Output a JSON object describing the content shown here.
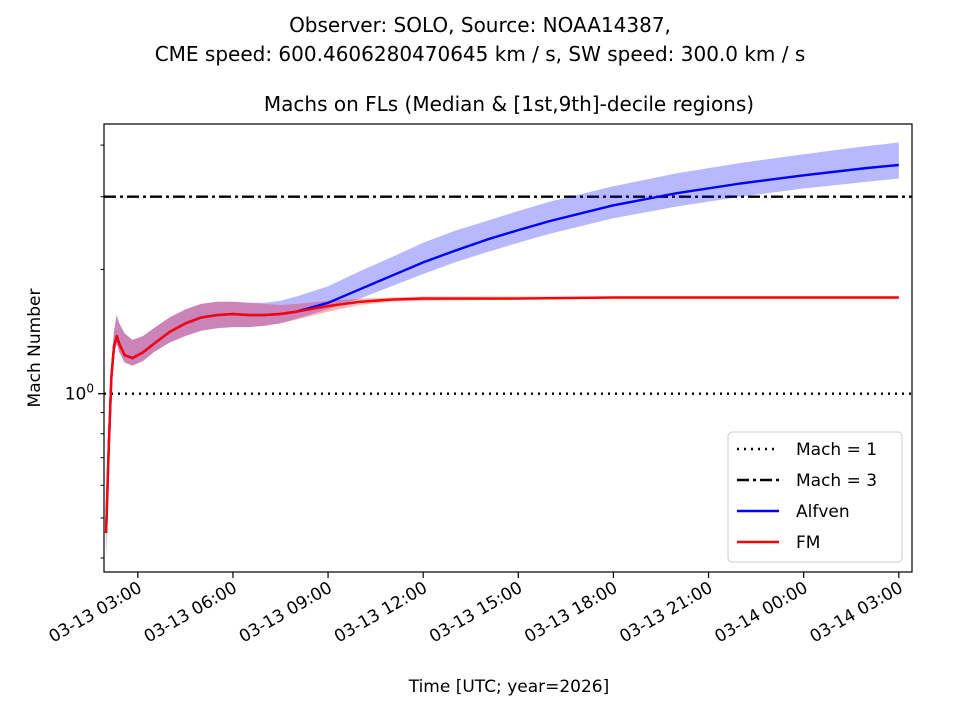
{
  "chart_data": {
    "type": "line",
    "suptitle": [
      "Observer: SOLO, Source: NOAA14387,",
      "CME speed: 600.4606280470645 km / s, SW speed: 300.0 km / s"
    ],
    "title": "Machs on FLs (Median & [1st,9th]-decile regions)",
    "xlabel": "Time [UTC; year=2026]",
    "ylabel": "Mach Number",
    "yscale": "log",
    "ylim": [
      0.37,
      4.5
    ],
    "xlim": [
      "2026-03-13T01:56",
      "2026-03-14T03:25"
    ],
    "x_ticks": [
      {
        "t": "2026-03-13T03:00",
        "label": "03-13 03:00"
      },
      {
        "t": "2026-03-13T06:00",
        "label": "03-13 06:00"
      },
      {
        "t": "2026-03-13T09:00",
        "label": "03-13 09:00"
      },
      {
        "t": "2026-03-13T12:00",
        "label": "03-13 12:00"
      },
      {
        "t": "2026-03-13T15:00",
        "label": "03-13 15:00"
      },
      {
        "t": "2026-03-13T18:00",
        "label": "03-13 18:00"
      },
      {
        "t": "2026-03-13T21:00",
        "label": "03-13 21:00"
      },
      {
        "t": "2026-03-14T00:00",
        "label": "03-14 00:00"
      },
      {
        "t": "2026-03-14T03:00",
        "label": "03-14 03:00"
      }
    ],
    "y_ticks": [
      {
        "value": 1,
        "label": "10",
        "exp": "0"
      }
    ],
    "reference_lines": [
      {
        "name": "Mach = 1",
        "value": 1,
        "style": "dotted",
        "color": "#000000"
      },
      {
        "name": "Mach = 3",
        "value": 3,
        "style": "dashdot",
        "color": "#000000"
      }
    ],
    "series": [
      {
        "name": "Alfven",
        "color": "#0000ff",
        "band_color": "#0000ff",
        "points": [
          [
            "2026-03-13T02:00",
            0.46,
            0.4,
            0.52
          ],
          [
            "2026-03-13T02:05",
            0.75,
            0.7,
            0.8
          ],
          [
            "2026-03-13T02:10",
            1.1,
            1.05,
            1.18
          ],
          [
            "2026-03-13T02:15",
            1.3,
            1.25,
            1.42
          ],
          [
            "2026-03-13T02:20",
            1.38,
            1.32,
            1.55
          ],
          [
            "2026-03-13T02:25",
            1.32,
            1.26,
            1.48
          ],
          [
            "2026-03-13T02:35",
            1.24,
            1.19,
            1.4
          ],
          [
            "2026-03-13T02:50",
            1.22,
            1.17,
            1.35
          ],
          [
            "2026-03-13T03:10",
            1.26,
            1.2,
            1.38
          ],
          [
            "2026-03-13T03:30",
            1.32,
            1.26,
            1.44
          ],
          [
            "2026-03-13T04:00",
            1.41,
            1.33,
            1.53
          ],
          [
            "2026-03-13T04:30",
            1.48,
            1.38,
            1.6
          ],
          [
            "2026-03-13T05:00",
            1.53,
            1.42,
            1.65
          ],
          [
            "2026-03-13T05:30",
            1.55,
            1.44,
            1.67
          ],
          [
            "2026-03-13T06:00",
            1.56,
            1.45,
            1.67
          ],
          [
            "2026-03-13T06:30",
            1.55,
            1.45,
            1.66
          ],
          [
            "2026-03-13T07:00",
            1.55,
            1.46,
            1.66
          ],
          [
            "2026-03-13T07:30",
            1.56,
            1.48,
            1.68
          ],
          [
            "2026-03-13T08:00",
            1.58,
            1.52,
            1.72
          ],
          [
            "2026-03-13T09:00",
            1.66,
            1.6,
            1.82
          ],
          [
            "2026-03-13T10:00",
            1.79,
            1.7,
            1.98
          ],
          [
            "2026-03-13T11:00",
            1.93,
            1.82,
            2.14
          ],
          [
            "2026-03-13T12:00",
            2.08,
            1.95,
            2.32
          ],
          [
            "2026-03-13T13:00",
            2.22,
            2.08,
            2.48
          ],
          [
            "2026-03-13T14:00",
            2.36,
            2.2,
            2.62
          ],
          [
            "2026-03-13T15:00",
            2.49,
            2.32,
            2.77
          ],
          [
            "2026-03-13T16:00",
            2.62,
            2.44,
            2.92
          ],
          [
            "2026-03-13T18:00",
            2.86,
            2.66,
            3.18
          ],
          [
            "2026-03-13T20:00",
            3.06,
            2.84,
            3.42
          ],
          [
            "2026-03-13T22:00",
            3.23,
            3.0,
            3.62
          ],
          [
            "2026-03-14T00:00",
            3.38,
            3.14,
            3.8
          ],
          [
            "2026-03-14T02:00",
            3.52,
            3.26,
            3.98
          ],
          [
            "2026-03-14T03:00",
            3.58,
            3.32,
            4.06
          ]
        ]
      },
      {
        "name": "FM",
        "color": "#ff0000",
        "band_color": "#ff0000",
        "points": [
          [
            "2026-03-13T02:00",
            0.46,
            0.4,
            0.52
          ],
          [
            "2026-03-13T02:05",
            0.75,
            0.7,
            0.8
          ],
          [
            "2026-03-13T02:10",
            1.1,
            1.05,
            1.18
          ],
          [
            "2026-03-13T02:15",
            1.3,
            1.25,
            1.42
          ],
          [
            "2026-03-13T02:20",
            1.38,
            1.32,
            1.55
          ],
          [
            "2026-03-13T02:25",
            1.32,
            1.26,
            1.48
          ],
          [
            "2026-03-13T02:35",
            1.24,
            1.19,
            1.4
          ],
          [
            "2026-03-13T02:50",
            1.22,
            1.17,
            1.35
          ],
          [
            "2026-03-13T03:10",
            1.26,
            1.2,
            1.38
          ],
          [
            "2026-03-13T03:30",
            1.32,
            1.26,
            1.44
          ],
          [
            "2026-03-13T04:00",
            1.41,
            1.33,
            1.53
          ],
          [
            "2026-03-13T04:30",
            1.48,
            1.38,
            1.6
          ],
          [
            "2026-03-13T05:00",
            1.53,
            1.42,
            1.65
          ],
          [
            "2026-03-13T05:30",
            1.55,
            1.44,
            1.67
          ],
          [
            "2026-03-13T06:00",
            1.56,
            1.45,
            1.67
          ],
          [
            "2026-03-13T06:30",
            1.55,
            1.45,
            1.66
          ],
          [
            "2026-03-13T07:00",
            1.55,
            1.46,
            1.65
          ],
          [
            "2026-03-13T07:30",
            1.56,
            1.48,
            1.64
          ],
          [
            "2026-03-13T08:00",
            1.58,
            1.51,
            1.65
          ],
          [
            "2026-03-13T09:00",
            1.63,
            1.58,
            1.68
          ],
          [
            "2026-03-13T10:00",
            1.67,
            1.64,
            1.7
          ],
          [
            "2026-03-13T11:00",
            1.69,
            1.67,
            1.71
          ],
          [
            "2026-03-13T12:00",
            1.7,
            1.68,
            1.72
          ],
          [
            "2026-03-13T15:00",
            1.7,
            1.69,
            1.72
          ],
          [
            "2026-03-13T18:00",
            1.71,
            1.7,
            1.72
          ],
          [
            "2026-03-13T21:00",
            1.71,
            1.7,
            1.72
          ],
          [
            "2026-03-14T00:00",
            1.71,
            1.7,
            1.72
          ],
          [
            "2026-03-14T03:00",
            1.71,
            1.7,
            1.72
          ]
        ]
      }
    ],
    "legend": {
      "position": "lower-right"
    }
  }
}
